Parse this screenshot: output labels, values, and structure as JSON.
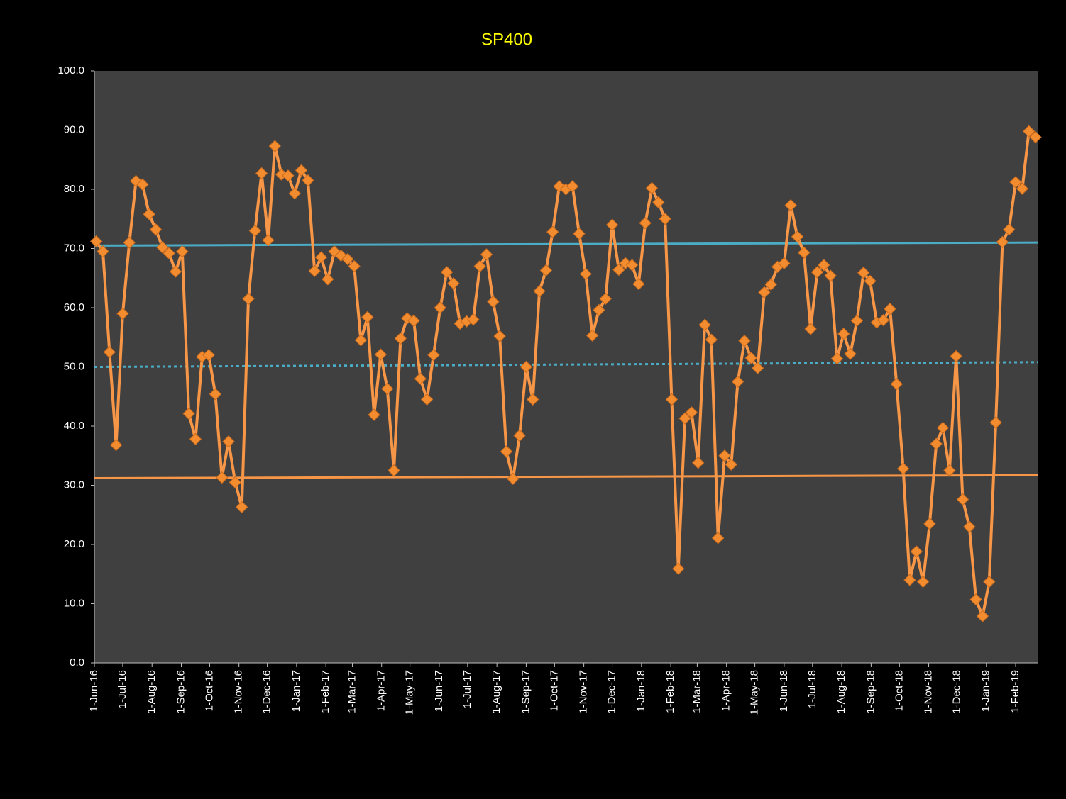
{
  "chart_data": {
    "type": "line",
    "title": "SP400",
    "x": [
      "2016-06-03",
      "2016-06-10",
      "2016-06-17",
      "2016-06-24",
      "2016-07-01",
      "2016-07-08",
      "2016-07-15",
      "2016-07-22",
      "2016-07-29",
      "2016-08-05",
      "2016-08-12",
      "2016-08-19",
      "2016-08-26",
      "2016-09-02",
      "2016-09-09",
      "2016-09-16",
      "2016-09-23",
      "2016-09-30",
      "2016-10-07",
      "2016-10-14",
      "2016-10-21",
      "2016-10-28",
      "2016-11-04",
      "2016-11-11",
      "2016-11-18",
      "2016-11-25",
      "2016-12-02",
      "2016-12-09",
      "2016-12-16",
      "2016-12-23",
      "2016-12-30",
      "2017-01-06",
      "2017-01-13",
      "2017-01-20",
      "2017-01-27",
      "2017-02-03",
      "2017-02-10",
      "2017-02-17",
      "2017-02-24",
      "2017-03-03",
      "2017-03-10",
      "2017-03-17",
      "2017-03-24",
      "2017-03-31",
      "2017-04-07",
      "2017-04-14",
      "2017-04-21",
      "2017-04-28",
      "2017-05-05",
      "2017-05-12",
      "2017-05-19",
      "2017-05-26",
      "2017-06-02",
      "2017-06-09",
      "2017-06-16",
      "2017-06-23",
      "2017-06-30",
      "2017-07-07",
      "2017-07-14",
      "2017-07-21",
      "2017-07-28",
      "2017-08-04",
      "2017-08-11",
      "2017-08-18",
      "2017-08-25",
      "2017-09-01",
      "2017-09-08",
      "2017-09-15",
      "2017-09-22",
      "2017-09-29",
      "2017-10-06",
      "2017-10-13",
      "2017-10-20",
      "2017-10-27",
      "2017-11-03",
      "2017-11-10",
      "2017-11-17",
      "2017-11-24",
      "2017-12-01",
      "2017-12-08",
      "2017-12-15",
      "2017-12-22",
      "2017-12-29",
      "2018-01-05",
      "2018-01-12",
      "2018-01-19",
      "2018-01-26",
      "2018-02-02",
      "2018-02-09",
      "2018-02-16",
      "2018-02-23",
      "2018-03-02",
      "2018-03-09",
      "2018-03-16",
      "2018-03-23",
      "2018-03-30",
      "2018-04-06",
      "2018-04-13",
      "2018-04-20",
      "2018-04-27",
      "2018-05-04",
      "2018-05-11",
      "2018-05-18",
      "2018-05-25",
      "2018-06-01",
      "2018-06-08",
      "2018-06-15",
      "2018-06-22",
      "2018-06-29",
      "2018-07-06",
      "2018-07-13",
      "2018-07-20",
      "2018-07-27",
      "2018-08-03",
      "2018-08-10",
      "2018-08-17",
      "2018-08-24",
      "2018-08-31",
      "2018-09-07",
      "2018-09-14",
      "2018-09-21",
      "2018-09-28",
      "2018-10-05",
      "2018-10-12",
      "2018-10-19",
      "2018-10-26",
      "2018-11-02",
      "2018-11-09",
      "2018-11-16",
      "2018-11-23",
      "2018-11-30",
      "2018-12-07",
      "2018-12-14",
      "2018-12-21",
      "2018-12-28",
      "2019-01-04",
      "2019-01-11",
      "2019-01-18",
      "2019-01-25",
      "2019-02-01",
      "2019-02-08",
      "2019-02-15",
      "2019-02-22"
    ],
    "series": [
      {
        "color": "#f79646",
        "marker_color": "#f28c2e",
        "values": [
          71.2,
          69.5,
          52.5,
          36.8,
          59.0,
          71.0,
          81.4,
          80.8,
          75.8,
          73.2,
          70.2,
          69.2,
          66.1,
          69.5,
          42.1,
          37.8,
          51.7,
          52.0,
          45.4,
          31.3,
          37.4,
          30.5,
          26.3,
          61.5,
          73.0,
          82.7,
          71.4,
          87.3,
          82.5,
          82.3,
          79.3,
          83.2,
          81.5,
          66.2,
          68.5,
          64.8,
          69.5,
          68.8,
          68.2,
          67.0,
          54.5,
          58.4,
          41.9,
          52.1,
          46.3,
          32.5,
          54.8,
          58.2,
          57.8,
          48.0,
          44.5,
          52.0,
          60.0,
          66.0,
          64.1,
          57.3,
          57.7,
          58.0,
          67.0,
          69.0,
          61.0,
          55.2,
          35.7,
          31.1,
          38.4,
          50.0,
          44.5,
          62.8,
          66.3,
          72.8,
          80.5,
          80.0,
          80.5,
          72.5,
          65.7,
          55.3,
          59.6,
          61.5,
          74.0,
          66.4,
          67.5,
          67.2,
          64.0,
          74.3,
          80.2,
          77.8,
          75.0,
          44.5,
          15.9,
          41.3,
          42.3,
          33.8,
          57.1,
          54.6,
          21.1,
          35.0,
          33.5,
          47.5,
          54.4,
          51.5,
          49.8,
          62.6,
          63.9,
          66.9,
          67.5,
          77.3,
          72.0,
          69.3,
          56.4,
          66.0,
          67.2,
          65.4,
          51.4,
          55.6,
          52.2,
          57.8,
          65.9,
          64.5,
          57.5,
          57.9,
          59.8,
          47.1,
          32.8,
          14.0,
          18.8,
          13.7,
          23.5,
          37.0,
          39.7,
          32.5,
          51.8,
          27.6,
          23.0,
          10.7,
          7.9,
          13.7,
          40.6,
          71.1,
          73.2,
          81.2,
          80.1,
          89.8,
          88.8
        ]
      }
    ],
    "reference_lines": [
      {
        "color": "#4bacc6",
        "dashed": false,
        "values": [
          70.5,
          71.0
        ]
      },
      {
        "color": "#4bacc6",
        "dashed": true,
        "values": [
          50.0,
          50.8
        ]
      },
      {
        "color": "#f79646",
        "dashed": false,
        "values": [
          31.2,
          31.7
        ]
      }
    ],
    "xlim": [
      "2016-06-01",
      "2019-02-25"
    ],
    "xticks": [
      {
        "value": "2016-06-01",
        "label": "1-Jun-16"
      },
      {
        "value": "2016-07-01",
        "label": "1-Jul-16"
      },
      {
        "value": "2016-08-01",
        "label": "1-Aug-16"
      },
      {
        "value": "2016-09-01",
        "label": "1-Sep-16"
      },
      {
        "value": "2016-10-01",
        "label": "1-Oct-16"
      },
      {
        "value": "2016-11-01",
        "label": "1-Nov-16"
      },
      {
        "value": "2016-12-01",
        "label": "1-Dec-16"
      },
      {
        "value": "2017-01-01",
        "label": "1-Jan-17"
      },
      {
        "value": "2017-02-01",
        "label": "1-Feb-17"
      },
      {
        "value": "2017-03-01",
        "label": "1-Mar-17"
      },
      {
        "value": "2017-04-01",
        "label": "1-Apr-17"
      },
      {
        "value": "2017-05-01",
        "label": "1-May-17"
      },
      {
        "value": "2017-06-01",
        "label": "1-Jun-17"
      },
      {
        "value": "2017-07-01",
        "label": "1-Jul-17"
      },
      {
        "value": "2017-08-01",
        "label": "1-Aug-17"
      },
      {
        "value": "2017-09-01",
        "label": "1-Sep-17"
      },
      {
        "value": "2017-10-01",
        "label": "1-Oct-17"
      },
      {
        "value": "2017-11-01",
        "label": "1-Nov-17"
      },
      {
        "value": "2017-12-01",
        "label": "1-Dec-17"
      },
      {
        "value": "2018-01-01",
        "label": "1-Jan-18"
      },
      {
        "value": "2018-02-01",
        "label": "1-Feb-18"
      },
      {
        "value": "2018-03-01",
        "label": "1-Mar-18"
      },
      {
        "value": "2018-04-01",
        "label": "1-Apr-18"
      },
      {
        "value": "2018-05-01",
        "label": "1-May-18"
      },
      {
        "value": "2018-06-01",
        "label": "1-Jun-18"
      },
      {
        "value": "2018-07-01",
        "label": "1-Jul-18"
      },
      {
        "value": "2018-08-01",
        "label": "1-Aug-18"
      },
      {
        "value": "2018-09-01",
        "label": "1-Sep-18"
      },
      {
        "value": "2018-10-01",
        "label": "1-Oct-18"
      },
      {
        "value": "2018-11-01",
        "label": "1-Nov-18"
      },
      {
        "value": "2018-12-01",
        "label": "1-Dec-18"
      },
      {
        "value": "2019-01-01",
        "label": "1-Jan-19"
      },
      {
        "value": "2019-02-01",
        "label": "1-Feb-19"
      }
    ],
    "ylim": [
      0,
      100
    ],
    "yticks": [
      {
        "value": 0,
        "label": "0.0"
      },
      {
        "value": 10,
        "label": "10.0"
      },
      {
        "value": 20,
        "label": "20.0"
      },
      {
        "value": 30,
        "label": "30.0"
      },
      {
        "value": 40,
        "label": "40.0"
      },
      {
        "value": 50,
        "label": "50.0"
      },
      {
        "value": 60,
        "label": "60.0"
      },
      {
        "value": 70,
        "label": "70.0"
      },
      {
        "value": 80,
        "label": "80.0"
      },
      {
        "value": 90,
        "label": "90.0"
      },
      {
        "value": 100,
        "label": "100.0"
      }
    ],
    "grid": false
  }
}
